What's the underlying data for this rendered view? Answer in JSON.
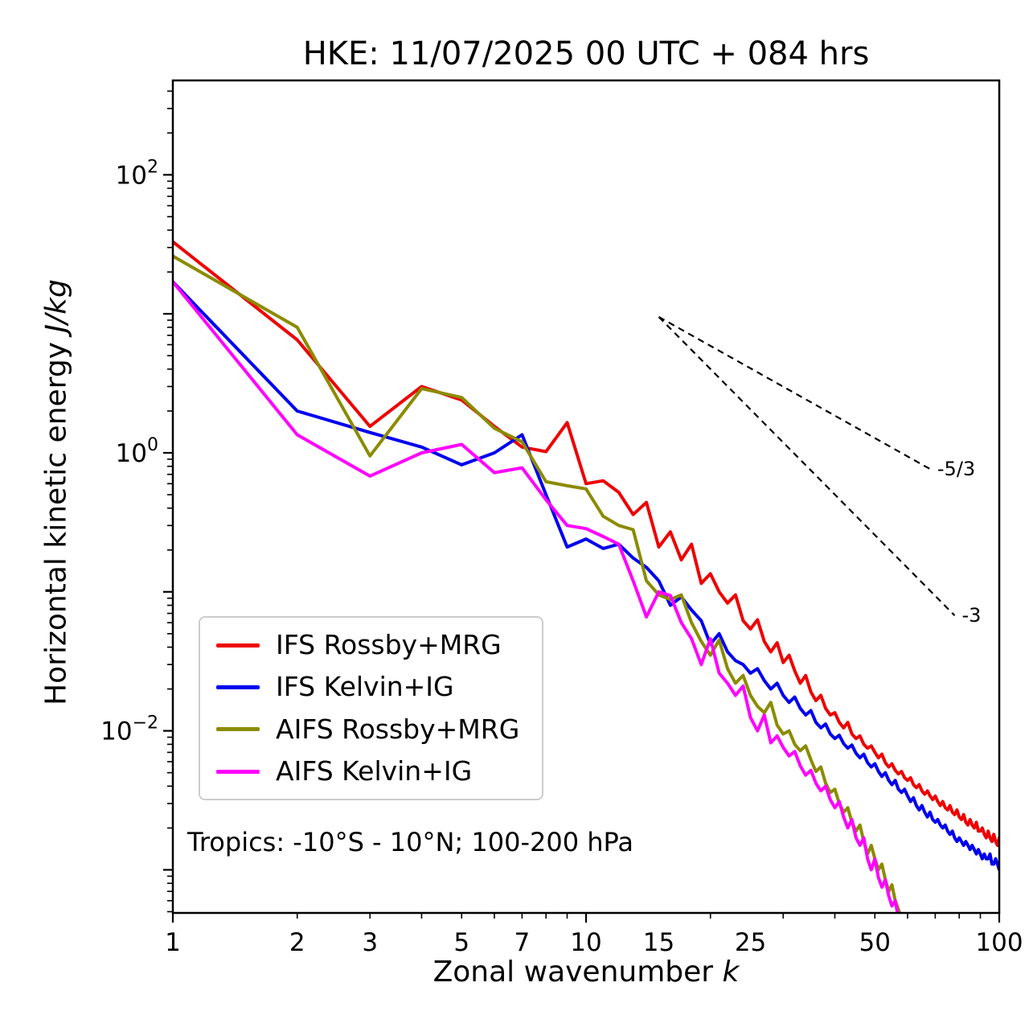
{
  "title": "HKE: 11/07/2025 00 UTC + 084 hrs",
  "annotation": "Tropics: -10°S - 10°N; 100-200 hPa",
  "axes": {
    "xlabel_prefix": "Zonal wavenumber ",
    "xlabel_italic": "k",
    "ylabel_prefix": "Horizontal kinetic energy ",
    "ylabel_italic": "J/kg",
    "xticks": [
      {
        "k": 1,
        "label": "1"
      },
      {
        "k": 2,
        "label": "2"
      },
      {
        "k": 3,
        "label": "3"
      },
      {
        "k": 5,
        "label": "5"
      },
      {
        "k": 7,
        "label": "7"
      },
      {
        "k": 10,
        "label": "10"
      },
      {
        "k": 15,
        "label": "15"
      },
      {
        "k": 25,
        "label": "25"
      },
      {
        "k": 50,
        "label": "50"
      },
      {
        "k": 100,
        "label": "100"
      }
    ],
    "yticks": [
      {
        "exp": 2,
        "sup": "2"
      },
      {
        "exp": 0,
        "sup": "0"
      },
      {
        "exp": -2,
        "sup": "−2"
      }
    ]
  },
  "legend": {
    "items": [
      {
        "label": "IFS Rossby+MRG",
        "color": "#ee0000"
      },
      {
        "label": "IFS Kelvin+IG",
        "color": "#0000ee"
      },
      {
        "label": "AIFS Rossby+MRG",
        "color": "#8b8b00"
      },
      {
        "label": "AIFS Kelvin+IG",
        "color": "#ff00ff"
      }
    ]
  },
  "chart_data": {
    "type": "line",
    "title": "HKE: 11/07/2025 00 UTC + 084 hrs",
    "xlabel": "Zonal wavenumber k",
    "ylabel": "Horizontal kinetic energy J/kg",
    "x_scale": "log",
    "y_scale": "log",
    "xlim": [
      1,
      100
    ],
    "ylim_exponents": [
      -3.31,
      2.679
    ],
    "grid": false,
    "legend_position": "lower-left",
    "k_start": 1,
    "series": [
      {
        "name": "IFS Rossby+MRG",
        "color": "#ee0000",
        "values": [
          33,
          6.5,
          1.55,
          3.0,
          2.4,
          1.55,
          1.1,
          1.02,
          1.65,
          0.6,
          0.63,
          0.52,
          0.36,
          0.44,
          0.21,
          0.27,
          0.17,
          0.22,
          0.115,
          0.135,
          0.1,
          0.083,
          0.095,
          0.062,
          0.054,
          0.063,
          0.044,
          0.037,
          0.043,
          0.031,
          0.035,
          0.027,
          0.022,
          0.025,
          0.019,
          0.0165,
          0.018,
          0.0145,
          0.013,
          0.0135,
          0.0115,
          0.0105,
          0.0115,
          0.0095,
          0.0088,
          0.0092,
          0.008,
          0.0075,
          0.0078,
          0.007,
          0.0064,
          0.0068,
          0.0059,
          0.0055,
          0.0058,
          0.0052,
          0.0049,
          0.0051,
          0.0046,
          0.0044,
          0.0046,
          0.0041,
          0.0039,
          0.0041,
          0.0037,
          0.0035,
          0.0037,
          0.0034,
          0.0032,
          0.0034,
          0.0031,
          0.0029,
          0.0031,
          0.0028,
          0.0027,
          0.0029,
          0.0026,
          0.0025,
          0.0027,
          0.0024,
          0.0023,
          0.0025,
          0.0022,
          0.0021,
          0.0023,
          0.0021,
          0.002,
          0.0022,
          0.0019,
          0.0019,
          0.002,
          0.0018,
          0.0017,
          0.0019,
          0.0017,
          0.0016,
          0.0018,
          0.0016,
          0.0015,
          0.0017
        ]
      },
      {
        "name": "IFS Kelvin+IG",
        "color": "#0000ee",
        "values": [
          17,
          2.0,
          1.4,
          1.1,
          0.82,
          1.0,
          1.35,
          0.5,
          0.21,
          0.24,
          0.205,
          0.22,
          0.175,
          0.15,
          0.12,
          0.08,
          0.092,
          0.074,
          0.062,
          0.042,
          0.05,
          0.037,
          0.032,
          0.03,
          0.026,
          0.028,
          0.023,
          0.02,
          0.022,
          0.018,
          0.016,
          0.0175,
          0.0145,
          0.013,
          0.014,
          0.0115,
          0.0105,
          0.0112,
          0.0095,
          0.0088,
          0.0093,
          0.0081,
          0.0075,
          0.0079,
          0.0069,
          0.0064,
          0.0068,
          0.0059,
          0.0055,
          0.0058,
          0.0051,
          0.0047,
          0.005,
          0.0044,
          0.0041,
          0.0044,
          0.0038,
          0.0036,
          0.0038,
          0.0034,
          0.0031,
          0.0033,
          0.0029,
          0.0027,
          0.0029,
          0.0026,
          0.0024,
          0.0026,
          0.0023,
          0.0022,
          0.0023,
          0.0021,
          0.002,
          0.0021,
          0.0019,
          0.0018,
          0.0019,
          0.0017,
          0.0016,
          0.0017,
          0.0016,
          0.0015,
          0.0016,
          0.0015,
          0.0014,
          0.0015,
          0.0014,
          0.0013,
          0.0014,
          0.0013,
          0.0012,
          0.0013,
          0.0012,
          0.0012,
          0.0013,
          0.0011,
          0.0011,
          0.0012,
          0.0011,
          0.001
        ]
      },
      {
        "name": "AIFS Rossby+MRG",
        "color": "#8b8b00",
        "values": [
          26,
          8.0,
          0.95,
          2.9,
          2.5,
          1.5,
          1.2,
          0.62,
          0.58,
          0.55,
          0.35,
          0.3,
          0.28,
          0.12,
          0.095,
          0.088,
          0.095,
          0.06,
          0.044,
          0.035,
          0.045,
          0.028,
          0.022,
          0.025,
          0.018,
          0.015,
          0.0135,
          0.016,
          0.011,
          0.0095,
          0.01,
          0.008,
          0.0072,
          0.0078,
          0.0062,
          0.0051,
          0.0055,
          0.0042,
          0.0036,
          0.0038,
          0.003,
          0.0026,
          0.0028,
          0.0022,
          0.0019,
          0.0021,
          0.0016,
          0.0013,
          0.0015,
          0.0012,
          0.001,
          0.0011,
          0.00085,
          0.0007,
          0.00078,
          0.0006,
          0.00052,
          0.00045
        ]
      },
      {
        "name": "AIFS Kelvin+IG",
        "color": "#ff00ff",
        "values": [
          17,
          1.35,
          0.68,
          1.0,
          1.15,
          0.72,
          0.78,
          0.46,
          0.3,
          0.285,
          0.25,
          0.22,
          0.12,
          0.066,
          0.1,
          0.094,
          0.06,
          0.046,
          0.03,
          0.046,
          0.026,
          0.022,
          0.018,
          0.021,
          0.0125,
          0.01,
          0.013,
          0.0082,
          0.0092,
          0.0076,
          0.0066,
          0.0071,
          0.0056,
          0.0048,
          0.0052,
          0.0042,
          0.0037,
          0.004,
          0.0032,
          0.0028,
          0.0031,
          0.0024,
          0.002,
          0.0023,
          0.0017,
          0.0015,
          0.0017,
          0.0012,
          0.001,
          0.0012,
          0.00088,
          0.00075,
          0.00085,
          0.00065,
          0.00055,
          0.0006,
          0.00045
        ]
      }
    ],
    "reference_lines": [
      {
        "label": "-5/3",
        "slope": -1.6667,
        "k0": 15,
        "e0": 9.5,
        "k1": 68
      },
      {
        "label": "-3",
        "slope": -3,
        "k0": 15,
        "e0": 9.5,
        "k1": 78
      }
    ]
  }
}
